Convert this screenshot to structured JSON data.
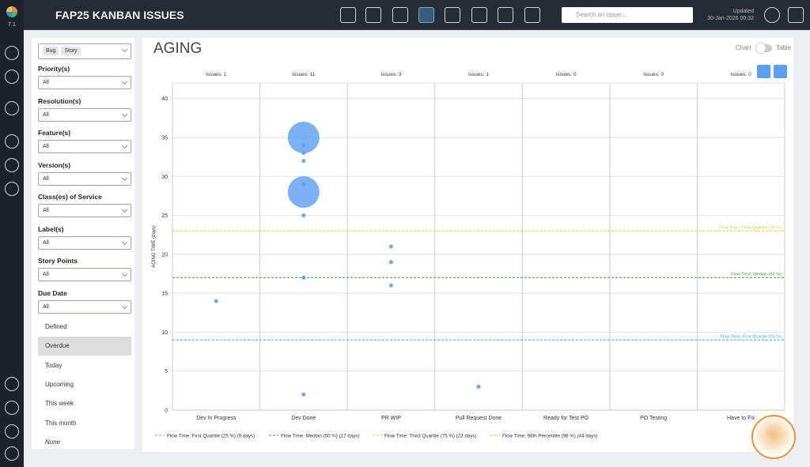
{
  "app": {
    "version": "7.1",
    "title": "FAP25 KANBAN ISSUES",
    "search_placeholder": "Search an issue...",
    "updated_label": "Updated",
    "updated_date": "30-Jan-2026 00:32"
  },
  "filters": {
    "types": [
      "Bug",
      "Story"
    ],
    "fields": [
      {
        "label": "Priority(s)",
        "value": "All"
      },
      {
        "label": "Resolution(s)",
        "value": "All"
      },
      {
        "label": "Feature(s)",
        "value": "All"
      },
      {
        "label": "Version(s)",
        "value": "All"
      },
      {
        "label": "Class(es) of Service",
        "value": "All"
      },
      {
        "label": "Label(s)",
        "value": "All"
      },
      {
        "label": "Story Points",
        "value": "All"
      },
      {
        "label": "Due Date",
        "value": "All"
      }
    ],
    "due_date_options": [
      "Defined",
      "Overdue",
      "Today",
      "Upcoming",
      "This week",
      "This month",
      "None"
    ]
  },
  "view": {
    "title": "AGING",
    "toggle_left": "Chart",
    "toggle_right": "Table"
  },
  "chart_data": {
    "type": "scatter",
    "y_label": "AGING TIME (days)",
    "categories": [
      "Dev In Progress",
      "Dev Done",
      "PR WIP",
      "Pull Request Done",
      "Ready for Test PO",
      "PO Testing",
      "Have to Fix"
    ],
    "issue_labels": [
      "Issues: 1",
      "Issues: 11",
      "Issues: 3",
      "Issues: 1",
      "Issues: 0",
      "Issues: 0",
      "Issues: 0"
    ],
    "series": [
      {
        "name": "Issues",
        "color": "#5b9ff0",
        "x": [
          "Dev In Progress",
          "Dev Done",
          "Dev Done",
          "Dev Done",
          "Dev Done",
          "Dev Done",
          "Dev Done",
          "Dev Done",
          "Dev Done",
          "Dev Done",
          "PR WIP",
          "PR WIP",
          "PR WIP",
          "Pull Request Done"
        ],
        "values": [
          14,
          35,
          34,
          33,
          32,
          29,
          28,
          25,
          17,
          2,
          21,
          19,
          16,
          3
        ],
        "sizes": [
          1,
          2,
          1,
          1,
          1,
          1,
          2,
          1,
          1,
          1,
          1,
          1,
          1,
          1
        ]
      }
    ],
    "reference_lines": [
      {
        "name": "Flow Time: First Quartile (25 %)",
        "legend": "Flow Time: First Quartile (25 %) (9 days)",
        "value": 9,
        "color": "#3fb0d8"
      },
      {
        "name": "Flow Time: Median (50 %)",
        "legend": "Flow Time: Median (50 %) (17 days)",
        "value": 17,
        "color": "#3c9e3c"
      },
      {
        "name": "Flow Time: Third Quartile (75 %)",
        "legend": "Flow Time: Third Quartile (75 %) (23 days)",
        "value": 23,
        "color": "#c8d43c"
      },
      {
        "name": "Flow Time: 98th Percentile (98 %)",
        "legend": "Flow Time: 98th Percentile (98 %) (44 days)",
        "value": 44,
        "color": "#f0a830"
      }
    ],
    "ylim": [
      0,
      42
    ],
    "yticks": [
      0,
      5,
      10,
      15,
      20,
      25,
      30,
      35,
      40
    ],
    "grid": true
  }
}
